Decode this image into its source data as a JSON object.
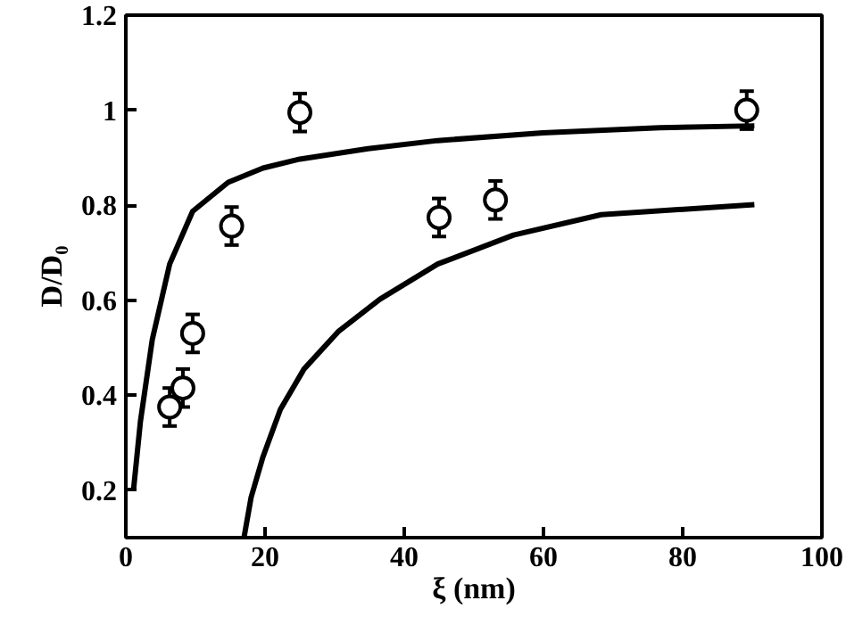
{
  "chart_data": {
    "type": "scatter",
    "xlabel": "ξ (nm)",
    "ylabel": "D/D₀",
    "xlim": [
      0,
      100
    ],
    "ylim": [
      0.1,
      1.2
    ],
    "xticks": [
      0,
      20,
      40,
      60,
      80,
      100
    ],
    "yticks": [
      0.2,
      0.4,
      0.6,
      0.8,
      1,
      1.2
    ],
    "grid": false,
    "series": [
      {
        "type": "scatter",
        "marker": "circle",
        "color": "#000000",
        "x": [
          6.3,
          8.2,
          9.6,
          15.2,
          25,
          45,
          53.1,
          89.2
        ],
        "values": [
          0.375,
          0.415,
          0.53,
          0.756,
          0.995,
          0.774,
          0.811,
          1.0
        ],
        "errors": [
          0.04,
          0.04,
          0.04,
          0.04,
          0.04,
          0.04,
          0.04,
          0.04
        ]
      },
      {
        "type": "line",
        "color": "#000000",
        "x": [
          1.1,
          2.1,
          3.8,
          6.3,
          9.6,
          14.7,
          19.7,
          25,
          34.8,
          44.8,
          59.9,
          76.7,
          90.3
        ],
        "values": [
          0.2,
          0.345,
          0.517,
          0.676,
          0.787,
          0.848,
          0.878,
          0.897,
          0.919,
          0.936,
          0.952,
          0.963,
          0.967
        ]
      },
      {
        "type": "line",
        "color": "#000000",
        "x": [
          17,
          18,
          19.7,
          22.2,
          25.6,
          30.6,
          36.5,
          44.8,
          55.7,
          68.3,
          90.3
        ],
        "values": [
          0.102,
          0.185,
          0.27,
          0.37,
          0.455,
          0.535,
          0.602,
          0.676,
          0.737,
          0.78,
          0.801
        ]
      }
    ]
  }
}
